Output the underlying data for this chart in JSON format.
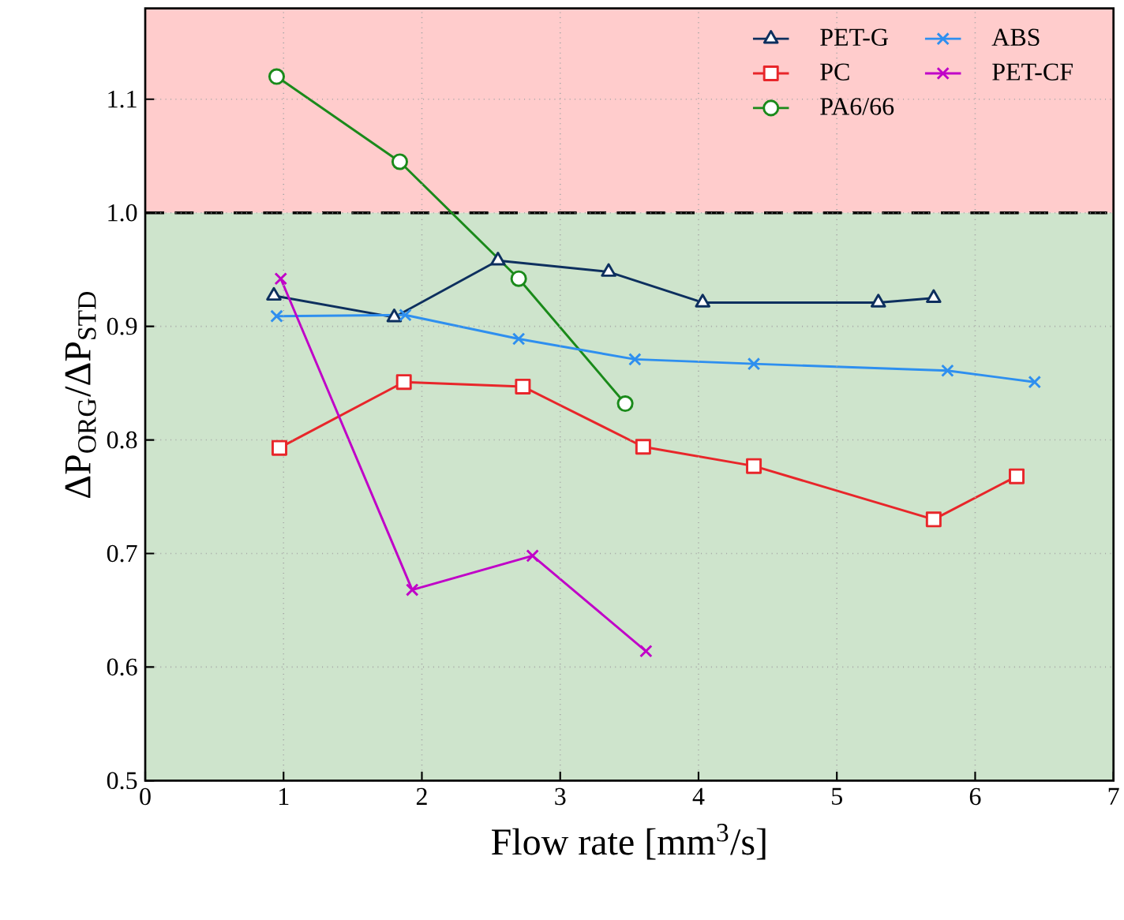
{
  "chart_data": {
    "type": "line",
    "xlabel": "Flow rate [mm$^{3}$/s]",
    "ylabel": "ΔP$_{ORG}$/ΔP$_{STD}$",
    "xlim": [
      0,
      7
    ],
    "ylim": [
      0.5,
      1.18
    ],
    "xticks": [
      0,
      1,
      2,
      3,
      4,
      5,
      6,
      7
    ],
    "yticks": [
      0.5,
      0.6,
      0.7,
      0.8,
      0.9,
      {
        "value": 1,
        "label": "1.0"
      },
      1.1
    ],
    "grid": true,
    "legend": "top right",
    "bands": [
      {
        "axis": "y",
        "from": 1.0,
        "to": 1.18,
        "color": "#ffcccc"
      },
      {
        "axis": "y",
        "from": 0.5,
        "to": 1.0,
        "color": "#cee4cc"
      }
    ],
    "ref_lines": [
      {
        "axis": "y",
        "value": 1.0,
        "color": "#000000",
        "line_style": "dashed"
      }
    ],
    "series": [
      {
        "name": "PET-G",
        "color": "#0d2f5e",
        "marker": "triangle",
        "x": [
          0.93,
          1.8,
          2.55,
          3.35,
          4.03,
          5.3,
          5.7
        ],
        "values": [
          0.927,
          0.908,
          0.958,
          0.948,
          0.921,
          0.921,
          0.925
        ]
      },
      {
        "name": "PC",
        "color": "#e8262a",
        "marker": "square",
        "x": [
          0.97,
          1.87,
          2.73,
          3.6,
          4.4,
          5.7,
          6.3
        ],
        "values": [
          0.793,
          0.851,
          0.847,
          0.794,
          0.777,
          0.73,
          0.768
        ]
      },
      {
        "name": "PA6/66",
        "color": "#1a8a1a",
        "marker": "circle",
        "x": [
          0.95,
          1.84,
          2.7,
          3.47
        ],
        "values": [
          1.12,
          1.045,
          0.942,
          0.832
        ]
      },
      {
        "name": "ABS",
        "color": "#2e8fef",
        "marker": "cross",
        "x": [
          0.95,
          1.88,
          2.7,
          3.54,
          4.4,
          5.8,
          6.43
        ],
        "values": [
          0.909,
          0.91,
          0.889,
          0.871,
          0.867,
          0.861,
          0.851
        ]
      },
      {
        "name": "PET-CF",
        "color": "#c000c8",
        "marker": "cross",
        "x": [
          0.98,
          1.93,
          2.8,
          3.62
        ],
        "values": [
          0.942,
          0.668,
          0.698,
          0.614
        ]
      }
    ]
  }
}
